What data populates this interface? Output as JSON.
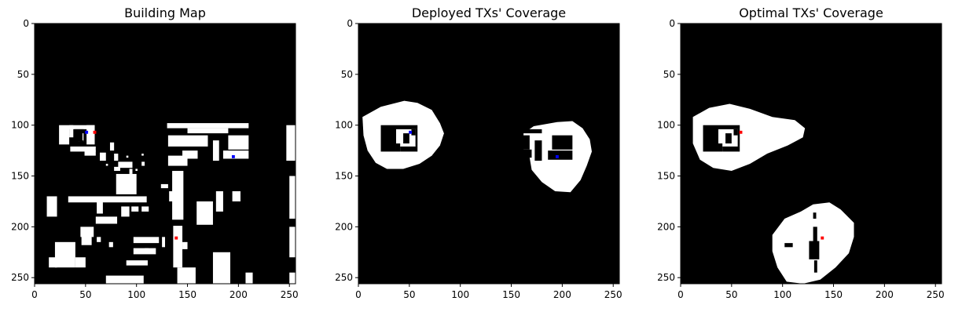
{
  "chart_data": [
    {
      "type": "heatmap",
      "title": "Building Map",
      "xlim": [
        0,
        256
      ],
      "ylim": [
        256,
        0
      ],
      "xticks": [
        0,
        50,
        100,
        150,
        200,
        250
      ],
      "yticks": [
        0,
        50,
        100,
        150,
        200,
        250
      ],
      "colormap": {
        "0": "#000000",
        "1": "#ffffff"
      },
      "white_rects": [
        [
          24,
          100,
          34,
          119
        ],
        [
          34,
          100,
          59,
          104
        ],
        [
          34,
          100,
          38,
          112
        ],
        [
          51,
          100,
          59,
          119
        ],
        [
          43,
          108,
          48,
          116
        ],
        [
          35,
          121,
          60,
          126
        ],
        [
          49,
          125,
          60,
          130
        ],
        [
          74,
          117,
          78,
          125
        ],
        [
          78,
          128,
          82,
          135
        ],
        [
          64,
          127,
          70,
          135
        ],
        [
          90,
          130,
          92,
          132
        ],
        [
          70,
          138,
          72,
          140
        ],
        [
          82,
          136,
          96,
          142
        ],
        [
          78,
          141,
          84,
          145
        ],
        [
          99,
          143,
          101,
          145
        ],
        [
          105,
          128,
          107,
          130
        ],
        [
          105,
          136,
          108,
          140
        ],
        [
          80,
          148,
          100,
          168
        ],
        [
          93,
          143,
          96,
          148
        ],
        [
          130,
          98,
          210,
          103
        ],
        [
          131,
          110,
          170,
          121
        ],
        [
          150,
          103,
          190,
          108
        ],
        [
          145,
          125,
          160,
          133
        ],
        [
          175,
          115,
          181,
          135
        ],
        [
          190,
          110,
          210,
          124
        ],
        [
          185,
          125,
          210,
          133
        ],
        [
          131,
          130,
          150,
          140
        ],
        [
          247,
          100,
          256,
          135
        ],
        [
          135,
          145,
          146,
          193
        ],
        [
          132,
          165,
          141,
          175
        ],
        [
          124,
          158,
          131,
          162
        ],
        [
          250,
          150,
          256,
          192
        ],
        [
          250,
          200,
          256,
          230
        ],
        [
          250,
          245,
          256,
          256
        ],
        [
          178,
          165,
          185,
          185
        ],
        [
          194,
          165,
          202,
          175
        ],
        [
          159,
          175,
          175,
          198
        ],
        [
          145,
          215,
          150,
          222
        ],
        [
          136,
          199,
          145,
          240
        ],
        [
          140,
          240,
          158,
          256
        ],
        [
          175,
          225,
          192,
          256
        ],
        [
          207,
          245,
          214,
          256
        ],
        [
          20,
          215,
          40,
          240
        ],
        [
          14,
          230,
          22,
          240
        ],
        [
          40,
          230,
          50,
          240
        ],
        [
          45,
          200,
          58,
          210
        ],
        [
          46,
          209,
          56,
          218
        ],
        [
          60,
          190,
          81,
          197
        ],
        [
          61,
          210,
          65,
          215
        ],
        [
          73,
          215,
          77,
          220
        ],
        [
          97,
          221,
          119,
          227
        ],
        [
          97,
          210,
          122,
          216
        ],
        [
          125,
          210,
          128,
          220
        ],
        [
          90,
          233,
          111,
          238
        ],
        [
          108,
          221,
          112,
          226
        ],
        [
          70,
          248,
          107,
          256
        ],
        [
          12,
          170,
          22,
          190
        ],
        [
          33,
          170,
          110,
          176
        ],
        [
          105,
          180,
          112,
          185
        ],
        [
          61,
          174,
          67,
          187
        ],
        [
          85,
          180,
          93,
          190
        ],
        [
          95,
          180,
          102,
          185
        ]
      ],
      "black_rects": [
        [
          39,
          104,
          48,
          107
        ],
        [
          39,
          107,
          47,
          116
        ],
        [
          38,
          117,
          42,
          119
        ],
        [
          44,
          115,
          48,
          116
        ]
      ],
      "markers": [
        {
          "x": 51,
          "y": 107,
          "color": "#0000ff"
        },
        {
          "x": 59,
          "y": 107,
          "color": "#ff0000"
        },
        {
          "x": 195,
          "y": 131,
          "color": "#0000ff"
        },
        {
          "x": 139,
          "y": 211,
          "color": "#ff0000"
        }
      ]
    },
    {
      "type": "heatmap",
      "title": "Deployed TXs' Coverage",
      "xlim": [
        0,
        256
      ],
      "ylim": [
        256,
        0
      ],
      "xticks": [
        0,
        50,
        100,
        150,
        200,
        250
      ],
      "yticks": [
        0,
        50,
        100,
        150,
        200,
        250
      ],
      "colormap": {
        "0": "#000000",
        "1": "#ffffff"
      },
      "blobs": [
        [
          [
            4,
            92
          ],
          [
            22,
            82
          ],
          [
            45,
            76
          ],
          [
            58,
            78
          ],
          [
            72,
            85
          ],
          [
            80,
            98
          ],
          [
            84,
            108
          ],
          [
            80,
            120
          ],
          [
            72,
            130
          ],
          [
            60,
            138
          ],
          [
            44,
            143
          ],
          [
            28,
            143
          ],
          [
            17,
            137
          ],
          [
            9,
            125
          ],
          [
            5,
            110
          ]
        ],
        [
          [
            162,
            108
          ],
          [
            172,
            101
          ],
          [
            195,
            97
          ],
          [
            210,
            96
          ],
          [
            220,
            103
          ],
          [
            227,
            114
          ],
          [
            229,
            126
          ],
          [
            224,
            140
          ],
          [
            218,
            154
          ],
          [
            208,
            166
          ],
          [
            193,
            165
          ],
          [
            180,
            156
          ],
          [
            170,
            144
          ],
          [
            168,
            132
          ],
          [
            162,
            124
          ]
        ]
      ],
      "black_rects": [
        [
          22,
          100,
          37,
          126
        ],
        [
          37,
          100,
          58,
          104
        ],
        [
          44,
          108,
          50,
          118
        ],
        [
          37,
          118,
          41,
          126
        ],
        [
          41,
          121,
          58,
          126
        ],
        [
          56,
          104,
          58,
          121
        ],
        [
          52,
          104,
          56,
          110
        ],
        [
          148,
          110,
          168,
          124
        ],
        [
          150,
          124,
          170,
          132
        ],
        [
          173,
          115,
          180,
          135
        ],
        [
          190,
          110,
          210,
          124
        ],
        [
          186,
          125,
          210,
          134
        ],
        [
          160,
          104,
          180,
          108
        ]
      ],
      "markers": [
        {
          "x": 51,
          "y": 107,
          "color": "#0000ff"
        },
        {
          "x": 195,
          "y": 131,
          "color": "#0000ff"
        }
      ]
    },
    {
      "type": "heatmap",
      "title": "Optimal TXs' Coverage",
      "xlim": [
        0,
        256
      ],
      "ylim": [
        256,
        0
      ],
      "xticks": [
        0,
        50,
        100,
        150,
        200,
        250
      ],
      "yticks": [
        0,
        50,
        100,
        150,
        200,
        250
      ],
      "colormap": {
        "0": "#000000",
        "1": "#ffffff"
      },
      "blobs": [
        [
          [
            12,
            92
          ],
          [
            28,
            83
          ],
          [
            48,
            79
          ],
          [
            68,
            84
          ],
          [
            90,
            92
          ],
          [
            112,
            95
          ],
          [
            122,
            103
          ],
          [
            120,
            112
          ],
          [
            105,
            120
          ],
          [
            85,
            128
          ],
          [
            68,
            138
          ],
          [
            50,
            145
          ],
          [
            32,
            142
          ],
          [
            19,
            134
          ],
          [
            12,
            118
          ]
        ],
        [
          [
            90,
            208
          ],
          [
            102,
            192
          ],
          [
            118,
            185
          ],
          [
            130,
            178
          ],
          [
            146,
            176
          ],
          [
            157,
            183
          ],
          [
            170,
            196
          ],
          [
            170,
            210
          ],
          [
            165,
            226
          ],
          [
            152,
            240
          ],
          [
            137,
            252
          ],
          [
            120,
            256
          ],
          [
            104,
            254
          ],
          [
            95,
            240
          ],
          [
            90,
            224
          ]
        ]
      ],
      "black_rects": [
        [
          22,
          100,
          37,
          126
        ],
        [
          37,
          100,
          58,
          104
        ],
        [
          44,
          108,
          50,
          118
        ],
        [
          37,
          118,
          41,
          126
        ],
        [
          41,
          121,
          58,
          126
        ],
        [
          56,
          104,
          58,
          121
        ],
        [
          52,
          104,
          56,
          110
        ],
        [
          102,
          216,
          110,
          220
        ],
        [
          130,
          200,
          134,
          216
        ],
        [
          130,
          186,
          133,
          192
        ],
        [
          126,
          214,
          136,
          232
        ],
        [
          131,
          233,
          134,
          245
        ]
      ],
      "markers": [
        {
          "x": 59,
          "y": 107,
          "color": "#ff0000"
        },
        {
          "x": 139,
          "y": 211,
          "color": "#ff0000"
        }
      ]
    }
  ]
}
